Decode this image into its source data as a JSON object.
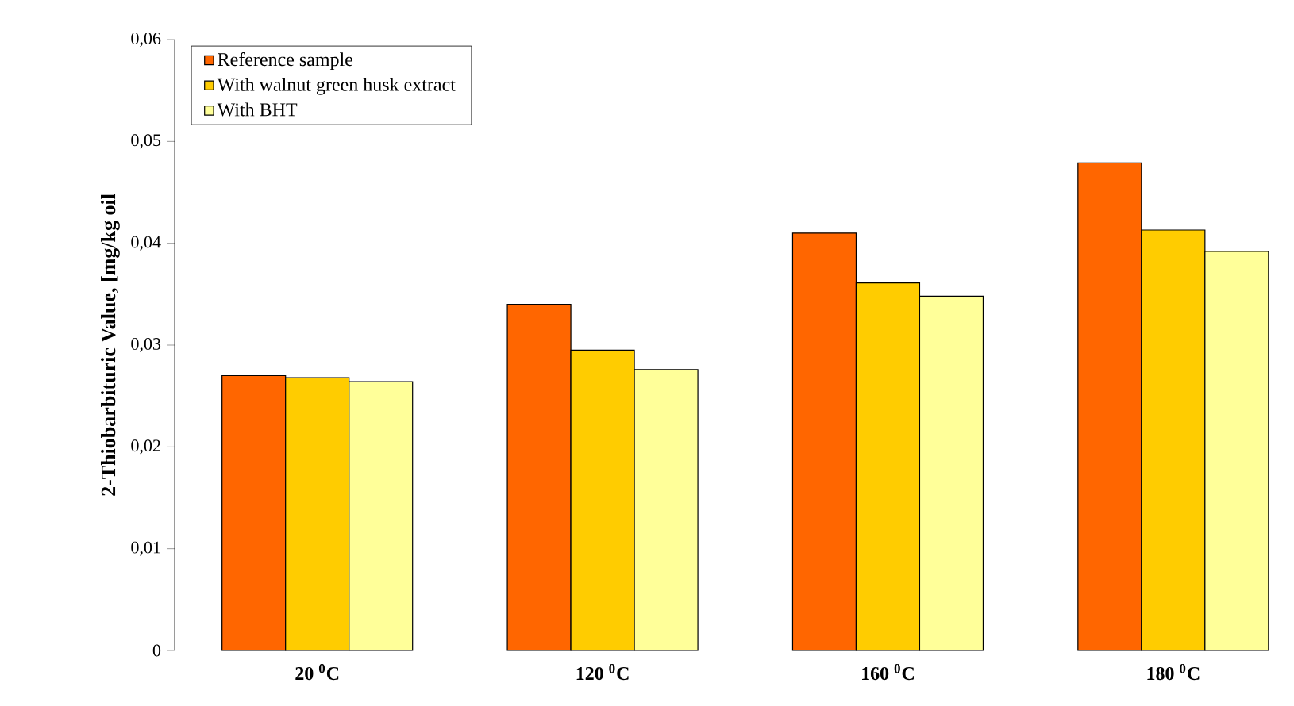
{
  "chart_data": {
    "type": "bar",
    "ylabel": "2-Thiobarbituric Value, [mg/kg oil",
    "categories": [
      "20 $^{0}$C",
      "120 $^{0}$C",
      "160 $^{0}$C",
      "180 $^{0}$C"
    ],
    "series": [
      {
        "name": "Reference sample",
        "color": "#ff6600",
        "values": [
          0.027,
          0.034,
          0.041,
          0.0479
        ]
      },
      {
        "name": "With walnut green husk extract",
        "color": "#ffcc00",
        "values": [
          0.0268,
          0.0295,
          0.0361,
          0.0413
        ]
      },
      {
        "name": "With BHT",
        "color": "#ffff99",
        "values": [
          0.0264,
          0.0276,
          0.0348,
          0.0392
        ]
      }
    ],
    "ylim": [
      0,
      0.06
    ],
    "yticks": [
      0,
      {
        "value": 0.01,
        "label": "0,01"
      },
      {
        "value": 0.02,
        "label": "0,02"
      },
      {
        "value": 0.03,
        "label": "0,03"
      },
      {
        "value": 0.04,
        "label": "0,04"
      },
      {
        "value": 0.05,
        "label": "0,05"
      },
      {
        "value": 0.06,
        "label": "0,06"
      }
    ],
    "grid": false,
    "legend": "top left"
  }
}
